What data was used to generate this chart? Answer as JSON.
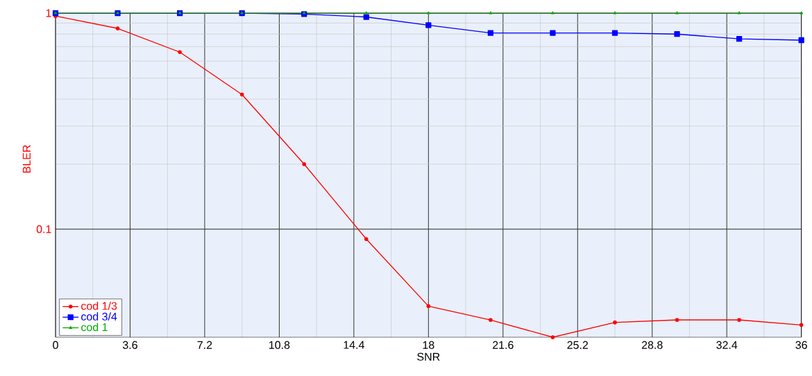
{
  "chart_data": {
    "type": "line",
    "xlabel": "SNR",
    "ylabel": "BLER",
    "x": [
      0,
      3,
      6,
      9,
      12,
      15,
      18,
      21,
      24,
      27,
      30,
      33,
      36
    ],
    "series": [
      {
        "name": "cod 1/3",
        "color": "#ff0000",
        "marker": "circle",
        "values": [
          0.97,
          0.85,
          0.66,
          0.42,
          0.2,
          0.09,
          0.044,
          0.038,
          0.0316,
          0.037,
          0.038,
          0.038,
          0.036
        ]
      },
      {
        "name": "cod 3/4",
        "color": "#0000ff",
        "marker": "square",
        "values": [
          1,
          1,
          1,
          1,
          0.99,
          0.96,
          0.88,
          0.81,
          0.81,
          0.81,
          0.8,
          0.76,
          0.75
        ]
      },
      {
        "name": "cod 1",
        "color": "#00aa00",
        "marker": "triangle",
        "values": [
          1,
          1,
          1,
          1,
          1,
          1,
          1,
          1,
          1,
          1,
          1,
          1,
          1
        ]
      }
    ],
    "xlim": [
      0,
      36
    ],
    "xticks": [
      0,
      3.6,
      7.2,
      10.8,
      14.4,
      18,
      21.6,
      25.2,
      28.8,
      32.4,
      36
    ],
    "ylim": [
      0.0316,
      1
    ],
    "yticks": [
      0.1,
      1
    ],
    "log": "y",
    "grid": true,
    "legend": "bottom left",
    "line_style": "solid"
  }
}
